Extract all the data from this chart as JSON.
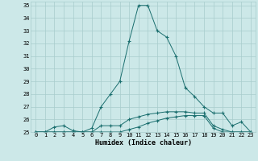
{
  "xlabel": "Humidex (Indice chaleur)",
  "ylabel": "",
  "background_color": "#cce8e8",
  "grid_color": "#a8cccc",
  "line_color": "#1a6e6e",
  "xlim": [
    -0.5,
    23.5
  ],
  "ylim": [
    25,
    35.3
  ],
  "yticks": [
    25,
    26,
    27,
    28,
    29,
    30,
    31,
    32,
    33,
    34,
    35
  ],
  "xticks": [
    0,
    1,
    2,
    3,
    4,
    5,
    6,
    7,
    8,
    9,
    10,
    11,
    12,
    13,
    14,
    15,
    16,
    17,
    18,
    19,
    20,
    21,
    22,
    23
  ],
  "series": [
    {
      "x": [
        0,
        1,
        2,
        3,
        4,
        5,
        6,
        7,
        8,
        9,
        10,
        11,
        12,
        13,
        14,
        15,
        16,
        17,
        18,
        19,
        20,
        21,
        22,
        23
      ],
      "y": [
        25,
        25,
        25.4,
        25.5,
        25.1,
        25,
        25.3,
        27.0,
        28.0,
        29.0,
        32.2,
        35.0,
        35.0,
        33.0,
        32.5,
        31.0,
        28.5,
        27.8,
        27.0,
        26.5,
        26.5,
        25.5,
        25.8,
        25.0
      ]
    },
    {
      "x": [
        0,
        1,
        2,
        3,
        4,
        5,
        6,
        7,
        8,
        9,
        10,
        11,
        12,
        13,
        14,
        15,
        16,
        17,
        18,
        19,
        20,
        21,
        22,
        23
      ],
      "y": [
        25,
        25,
        25,
        25,
        25,
        25,
        25,
        25.5,
        25.5,
        25.5,
        26.0,
        26.2,
        26.4,
        26.5,
        26.6,
        26.6,
        26.6,
        26.5,
        26.5,
        25.5,
        25.2,
        25.0,
        25.0,
        25.0
      ]
    },
    {
      "x": [
        0,
        1,
        2,
        3,
        4,
        5,
        6,
        7,
        8,
        9,
        10,
        11,
        12,
        13,
        14,
        15,
        16,
        17,
        18,
        19,
        20,
        21,
        22,
        23
      ],
      "y": [
        25,
        25,
        25,
        25,
        25,
        25,
        25,
        25,
        25,
        25,
        25.2,
        25.4,
        25.7,
        25.9,
        26.1,
        26.2,
        26.3,
        26.3,
        26.3,
        25.3,
        25.0,
        25.0,
        25.0,
        25.0
      ]
    }
  ]
}
